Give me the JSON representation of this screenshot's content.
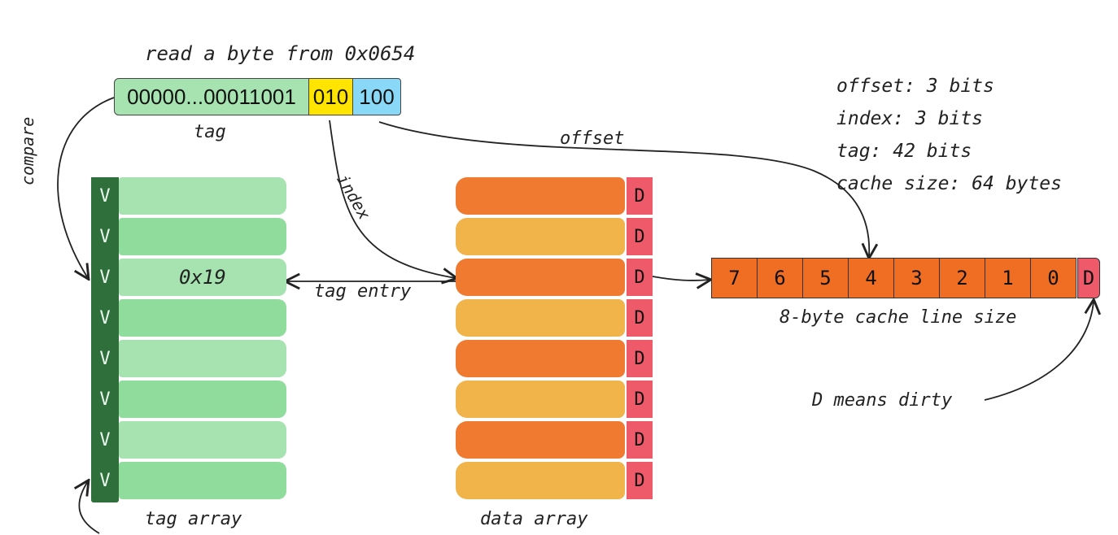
{
  "title": "read a byte from 0x0654",
  "address": {
    "tag_bits": "00000...00011001",
    "index_bits": "010",
    "offset_bits": "100",
    "tag_label": "tag"
  },
  "info": {
    "lines": [
      "offset: 3 bits",
      "index: 3 bits",
      "tag: 42 bits",
      "cache size: 64 bytes"
    ]
  },
  "arrows": {
    "compare": "compare",
    "index": "index",
    "offset": "offset",
    "tag_entry": "tag entry"
  },
  "tag_array": {
    "label": "tag array",
    "valid_bit": "V",
    "rows": [
      "",
      "",
      "0x19",
      "",
      "",
      "",
      "",
      ""
    ]
  },
  "data_array": {
    "label": "data array",
    "dirty_bit": "D",
    "row_colors": [
      "#f07a30",
      "#f0b44a",
      "#f07a30",
      "#f0b44a",
      "#f07a30",
      "#f0b44a",
      "#f07a30",
      "#f0b44a"
    ]
  },
  "cache_line": {
    "cells": [
      "7",
      "6",
      "5",
      "4",
      "3",
      "2",
      "1",
      "0"
    ],
    "dirty": "D",
    "label": "8-byte cache line size",
    "note": "D means dirty"
  },
  "colors": {
    "tag_green": "#a6e3b0",
    "tag_green_alt": "#8fdc9d",
    "valid_dark": "#2e6f3c",
    "index_yellow": "#ffe400",
    "offset_blue": "#8ad8f7",
    "data_orange": "#f07a30",
    "data_light": "#f0b44a",
    "dirty_red": "#ee5a6a",
    "cache_orange": "#ef6e24"
  }
}
